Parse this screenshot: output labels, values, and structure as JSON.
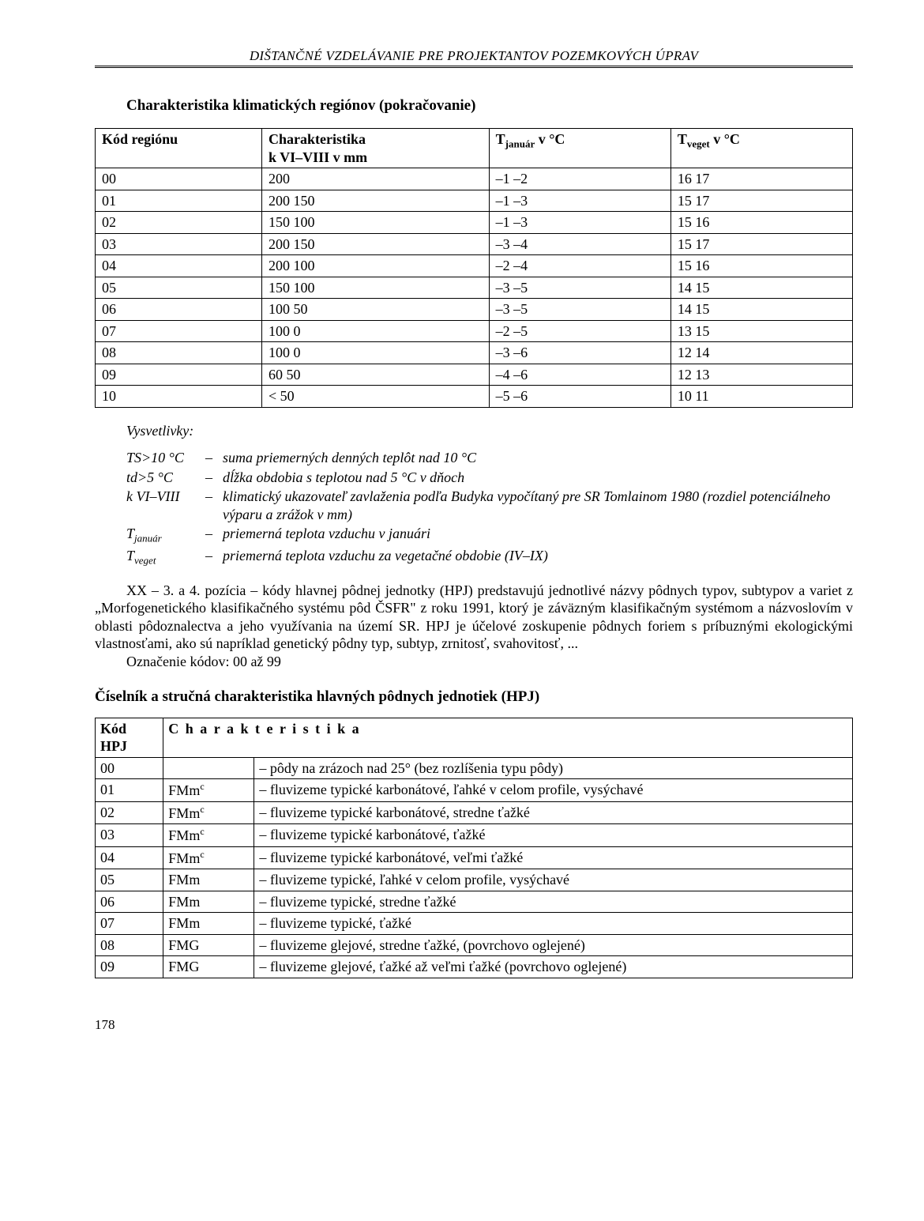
{
  "header": "DIŠTANČNÉ VZDELÁVANIE PRE PROJEKTANTOV POZEMKOVÝCH ÚPRAV",
  "title1": "Charakteristika klimatických regiónov (pokračovanie)",
  "reg_headers": {
    "a": "Kód regiónu",
    "b1": "Charakteristika",
    "b2": "k VI–VIII v mm",
    "c": "T",
    "c_sub": "január",
    "c_rest": " v °C",
    "d": "T",
    "d_sub": "veget",
    "d_rest": " v °C"
  },
  "reg_rows": [
    [
      "00",
      "200",
      "–1 –2",
      "16 17"
    ],
    [
      "01",
      "200 150",
      "–1 –3",
      "15 17"
    ],
    [
      "02",
      "150 100",
      "–1 –3",
      "15 16"
    ],
    [
      "03",
      "200 150",
      "–3 –4",
      "15 17"
    ],
    [
      "04",
      "200 100",
      "–2 –4",
      "15 16"
    ],
    [
      "05",
      "150 100",
      "–3 –5",
      "14 15"
    ],
    [
      "06",
      "100 50",
      "–3 –5",
      "14 15"
    ],
    [
      "07",
      "100 0",
      "–2 –5",
      "13 15"
    ],
    [
      "08",
      "100 0",
      "–3 –6",
      "12 14"
    ],
    [
      "09",
      "60 50",
      "–4 –6",
      "12 13"
    ],
    [
      "10",
      "< 50",
      "–5 –6",
      "10 11"
    ]
  ],
  "legend_title": "Vysvetlivky:",
  "legend": [
    {
      "t": "TS>10 °C",
      "d": "suma priemerných denných teplôt nad 10 °C"
    },
    {
      "t": "td>5 °C",
      "d": "dĺžka obdobia s teplotou nad 5 °C v dňoch"
    },
    {
      "t": "k VI–VIII",
      "d": "klimatický ukazovateľ zavlaženia podľa Budyka vypočítaný pre SR Tomlainom 1980 (rozdiel potenciálneho výparu a zrážok v mm)"
    },
    {
      "t": "T január",
      "d": "priemerná teplota vzduchu v januári",
      "sub": "január",
      "pre": "T"
    },
    {
      "t": "T veget",
      "d": "priemerná teplota vzduchu za vegetačné obdobie (IV–IX)",
      "sub": "veget",
      "pre": "T"
    }
  ],
  "para1": "XX – 3. a 4. pozícia – kódy hlavnej pôdnej jednotky (HPJ) predstavujú jednotlivé názvy pôdnych typov, subtypov a variet z „Morfogenetického klasifikačného systému pôd ČSFR\" z roku 1991, ktorý je záväzným klasifikačným systémom a názvoslovím v oblasti pôdoznalectva a jeho využívania na území SR. HPJ je účelové zoskupenie pôdnych foriem s príbuznými ekologickými vlastnosťami, ako sú napríklad genetický pôdny typ, subtyp, zrnitosť, svahovitosť, ...",
  "para2": "Označenie kódov: 00 až 99",
  "title2": "Číselník a stručná charakteristika hlavných pôdnych jednotiek (HPJ)",
  "hpj_headers": {
    "a1": "Kód",
    "a2": "HPJ",
    "b": "C h a r a k t e r i s t i k a"
  },
  "hpj_rows": [
    {
      "k": "00",
      "s": "",
      "sup": "",
      "d": "– pôdy na zrázoch nad 25° (bez rozlíšenia typu pôdy)"
    },
    {
      "k": "01",
      "s": "FMm",
      "sup": "c",
      "d": "– fluvizeme typické karbonátové, ľahké v celom profile, vysýchavé"
    },
    {
      "k": "02",
      "s": "FMm",
      "sup": "c",
      "d": "– fluvizeme typické karbonátové, stredne ťažké"
    },
    {
      "k": "03",
      "s": "FMm",
      "sup": "c",
      "d": "– fluvizeme typické karbonátové, ťažké"
    },
    {
      "k": "04",
      "s": "FMm",
      "sup": "c",
      "d": "– fluvizeme typické karbonátové, veľmi ťažké"
    },
    {
      "k": "05",
      "s": "FMm",
      "sup": "",
      "d": "– fluvizeme typické, ľahké v celom profile, vysýchavé"
    },
    {
      "k": "06",
      "s": "FMm",
      "sup": "",
      "d": "– fluvizeme typické, stredne ťažké"
    },
    {
      "k": "07",
      "s": "FMm",
      "sup": "",
      "d": "– fluvizeme typické, ťažké"
    },
    {
      "k": "08",
      "s": "FMG",
      "sup": "",
      "d": "– fluvizeme glejové, stredne ťažké, (povrchovo oglejené)"
    },
    {
      "k": "09",
      "s": "FMG",
      "sup": "",
      "d": "– fluvizeme glejové, ťažké až veľmi ťažké (povrchovo oglejené)"
    }
  ],
  "footer": "178"
}
